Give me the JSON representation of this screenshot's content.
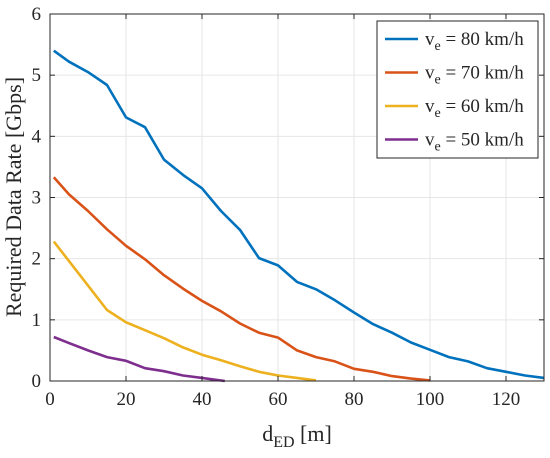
{
  "chart_data": {
    "type": "line",
    "title": "",
    "xlabel_main": "d",
    "xlabel_sub": "ED",
    "xlabel_unit": " [m]",
    "ylabel": "Required Data Rate [Gbps]",
    "xlim": [
      0,
      130
    ],
    "ylim": [
      0,
      6
    ],
    "xticks": [
      0,
      20,
      40,
      60,
      80,
      100,
      120
    ],
    "yticks": [
      0,
      1,
      2,
      3,
      4,
      5,
      6
    ],
    "grid": true,
    "legend_position": "top-right",
    "series": [
      {
        "name": "v_e = 80 km/h",
        "legend_main": "v",
        "legend_sub": "e",
        "legend_rest": " = 80 km/h",
        "color": "#0072BD",
        "x": [
          1,
          5,
          10,
          15,
          20,
          25,
          30,
          35,
          40,
          45,
          50,
          55,
          60,
          65,
          70,
          75,
          80,
          85,
          90,
          95,
          100,
          105,
          110,
          115,
          120,
          125,
          130
        ],
        "y": [
          5.4,
          5.22,
          5.05,
          4.84,
          4.31,
          4.15,
          3.62,
          3.37,
          3.15,
          2.78,
          2.47,
          2.01,
          1.89,
          1.62,
          1.5,
          1.32,
          1.12,
          0.93,
          0.79,
          0.63,
          0.51,
          0.39,
          0.32,
          0.21,
          0.15,
          0.09,
          0.05
        ]
      },
      {
        "name": "v_e = 70 km/h",
        "legend_main": "v",
        "legend_sub": "e",
        "legend_rest": " = 70 km/h",
        "color": "#D95319",
        "x": [
          1,
          5,
          10,
          15,
          20,
          25,
          30,
          35,
          40,
          45,
          50,
          55,
          60,
          65,
          70,
          75,
          80,
          85,
          90,
          95,
          100
        ],
        "y": [
          3.33,
          3.05,
          2.78,
          2.48,
          2.21,
          1.99,
          1.73,
          1.51,
          1.31,
          1.14,
          0.94,
          0.79,
          0.71,
          0.5,
          0.39,
          0.32,
          0.2,
          0.15,
          0.08,
          0.04,
          0.01
        ]
      },
      {
        "name": "v_e = 60 km/h",
        "legend_main": "v",
        "legend_sub": "e",
        "legend_rest": " = 60 km/h",
        "color": "#EDB120",
        "x": [
          1,
          5,
          10,
          15,
          20,
          25,
          30,
          35,
          40,
          45,
          50,
          55,
          60,
          65,
          70
        ],
        "y": [
          2.28,
          1.96,
          1.56,
          1.16,
          0.96,
          0.83,
          0.7,
          0.55,
          0.43,
          0.34,
          0.24,
          0.15,
          0.09,
          0.05,
          0.01
        ]
      },
      {
        "name": "v_e = 50 km/h",
        "legend_main": "v",
        "legend_sub": "e",
        "legend_rest": " = 50 km/h",
        "color": "#7E2F8E",
        "x": [
          1,
          5,
          10,
          15,
          20,
          25,
          30,
          35,
          40,
          46
        ],
        "y": [
          0.72,
          0.62,
          0.5,
          0.39,
          0.33,
          0.21,
          0.16,
          0.09,
          0.05,
          0.0
        ]
      }
    ]
  }
}
